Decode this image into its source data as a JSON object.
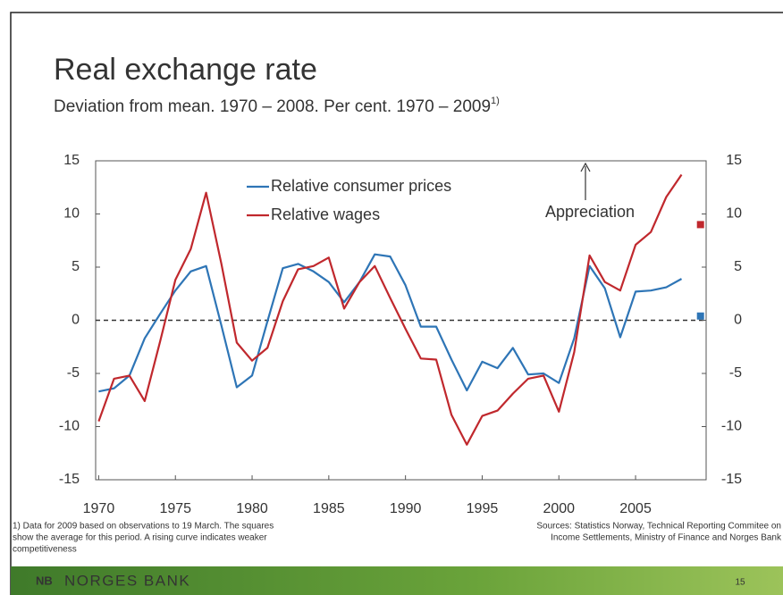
{
  "chart_data": {
    "type": "line",
    "title": "Real exchange rate",
    "subtitle": "Deviation from mean. 1970 – 2008. Per cent. 1970 – 2009",
    "subtitle_note": "1)",
    "x": [
      1970,
      1971,
      1972,
      1973,
      1974,
      1975,
      1976,
      1977,
      1978,
      1979,
      1980,
      1981,
      1982,
      1983,
      1984,
      1985,
      1986,
      1987,
      1988,
      1989,
      1990,
      1991,
      1992,
      1993,
      1994,
      1995,
      1996,
      1997,
      1998,
      1999,
      2000,
      2001,
      2002,
      2003,
      2004,
      2005,
      2006,
      2007,
      2008
    ],
    "series": [
      {
        "name": "Relative consumer prices",
        "color": "#2e75b6",
        "values": [
          -6.7,
          -6.4,
          -5.2,
          -1.7,
          0.6,
          2.8,
          4.6,
          5.1,
          -0.5,
          -6.3,
          -5.2,
          -0.1,
          4.9,
          5.3,
          4.6,
          3.6,
          1.7,
          3.6,
          6.2,
          6.0,
          3.3,
          -0.6,
          -0.6,
          -3.7,
          -6.6,
          -3.9,
          -4.5,
          -2.6,
          -5.1,
          -5.0,
          -5.9,
          -1.7,
          5.1,
          3.0,
          -1.6,
          2.7,
          2.8,
          3.1,
          3.9
        ]
      },
      {
        "name": "Relative wages",
        "color": "#c0282d",
        "values": [
          -9.5,
          -5.5,
          -5.2,
          -7.6,
          -2.0,
          3.8,
          6.7,
          12.0,
          5.3,
          -2.1,
          -3.8,
          -2.6,
          1.8,
          4.8,
          5.1,
          5.9,
          1.1,
          3.6,
          5.1,
          2.1,
          -0.8,
          -3.6,
          -3.7,
          -8.9,
          -11.7,
          -9.0,
          -8.5,
          -6.9,
          -5.5,
          -5.2,
          -8.6,
          -3.0,
          6.1,
          3.6,
          2.8,
          7.1,
          8.3,
          11.6,
          13.7
        ]
      }
    ],
    "squares": {
      "x": 2009,
      "values": [
        0.4,
        9.0
      ]
    },
    "annotation": "Appreciation",
    "xlim": [
      1969.8,
      2009.6
    ],
    "xticks": [
      1970,
      1975,
      1980,
      1985,
      1990,
      1995,
      2000,
      2005
    ],
    "ylim": [
      -15,
      15
    ],
    "yticks": [
      -15,
      -10,
      -5,
      0,
      5,
      10,
      15
    ],
    "y2lim": [
      -15,
      15
    ],
    "y2ticks": [
      -15,
      -10,
      -5,
      0,
      5,
      10,
      15
    ],
    "zero_line": true
  },
  "footnote": [
    "1) Data for 2009 based on observations to 19 March. The squares",
    "show the average for this period. A rising curve indicates weaker",
    "competitiveness"
  ],
  "sources": [
    "Sources: Statistics Norway, Technical Reporting Commitee on",
    "Income Settlements, Ministry of Finance and Norges Bank"
  ],
  "footer": {
    "bank": "NORGES BANK",
    "logo": "NB",
    "page": "15"
  }
}
